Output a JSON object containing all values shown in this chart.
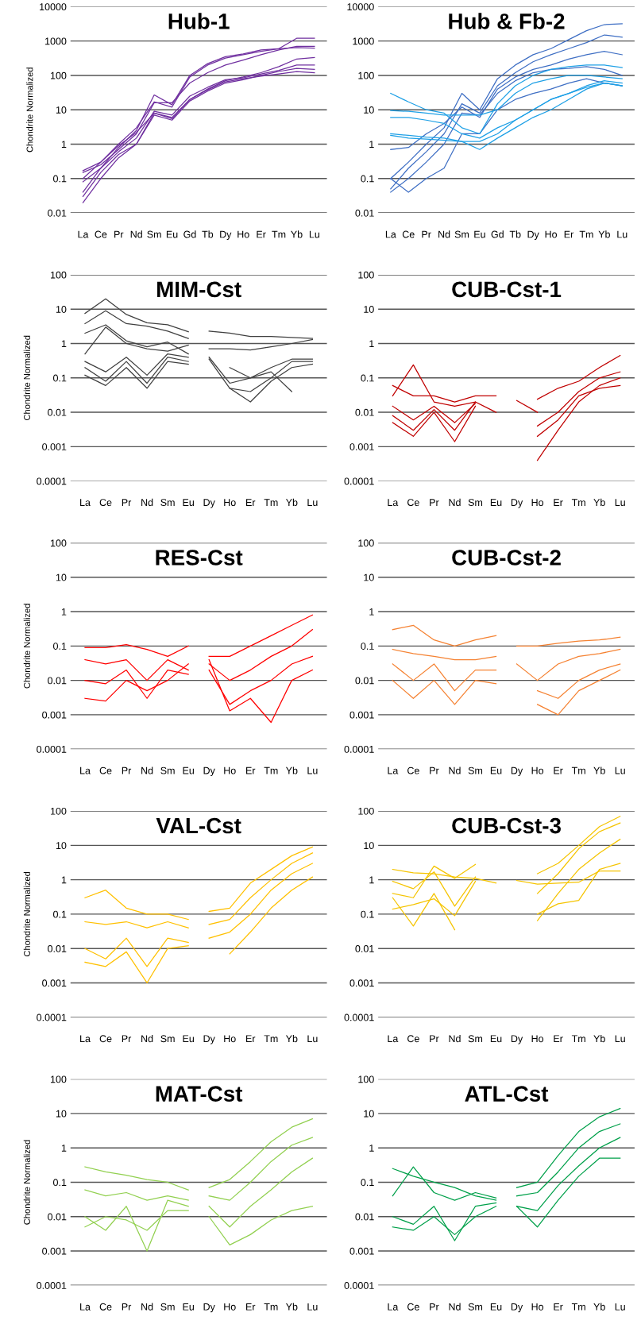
{
  "chart_data": [
    {
      "type": "line",
      "title": "Hub-1",
      "ylabel": "Chondrite Normalized",
      "log": true,
      "grid": "y",
      "ylim": [
        0.01,
        10000
      ],
      "yticks": [
        0.01,
        0.1,
        1,
        10,
        100,
        1000,
        10000
      ],
      "categories": [
        "La",
        "Ce",
        "Pr",
        "Nd",
        "Sm",
        "Eu",
        "Gd",
        "Tb",
        "Dy",
        "Ho",
        "Er",
        "Tm",
        "Yb",
        "Lu"
      ],
      "series": [
        {
          "color": "#7030a0",
          "values": [
            0.04,
            0.2,
            0.8,
            2.5,
            27,
            14,
            100,
            220,
            350,
            420,
            550,
            600,
            650,
            620
          ]
        },
        {
          "color": "#7030a0",
          "values": [
            0.1,
            0.3,
            1,
            3,
            17,
            12,
            90,
            200,
            320,
            400,
            500,
            600,
            1200,
            1200
          ]
        },
        {
          "color": "#7030a0",
          "values": [
            0.15,
            0.25,
            0.7,
            2,
            16,
            16,
            60,
            120,
            200,
            280,
            400,
            550,
            700,
            700
          ]
        },
        {
          "color": "#7030a0",
          "values": [
            0.03,
            0.15,
            0.5,
            1,
            8,
            6,
            20,
            40,
            70,
            90,
            120,
            180,
            300,
            330
          ]
        },
        {
          "color": "#7030a0",
          "values": [
            0.02,
            0.1,
            0.4,
            1,
            7,
            5,
            18,
            35,
            60,
            75,
            100,
            130,
            160,
            150
          ]
        },
        {
          "color": "#7030a0",
          "values": [
            0.08,
            0.2,
            0.6,
            1.5,
            9,
            7,
            25,
            45,
            75,
            85,
            110,
            140,
            200,
            200
          ]
        },
        {
          "color": "#7030a0",
          "values": [
            0.17,
            0.3,
            0.9,
            2.2,
            8,
            5.5,
            20,
            38,
            65,
            80,
            95,
            110,
            130,
            120
          ]
        }
      ]
    },
    {
      "type": "line",
      "title": "Hub & Fb-2",
      "log": true,
      "grid": "y",
      "ylim": [
        0.01,
        10000
      ],
      "yticks": [
        0.01,
        0.1,
        1,
        10,
        100,
        1000,
        10000
      ],
      "categories": [
        "La",
        "Ce",
        "Pr",
        "Nd",
        "Sm",
        "Eu",
        "Gd",
        "Tb",
        "Dy",
        "Ho",
        "Er",
        "Tm",
        "Yb",
        "Lu"
      ],
      "series": [
        {
          "color": "#3f6fc4",
          "values": [
            0.1,
            0.3,
            1,
            3,
            30,
            10,
            80,
            200,
            400,
            600,
            1100,
            2000,
            3000,
            3200
          ]
        },
        {
          "color": "#3f6fc4",
          "values": [
            0.05,
            0.2,
            0.6,
            2,
            15,
            8,
            50,
            120,
            250,
            400,
            600,
            900,
            1500,
            1300
          ]
        },
        {
          "color": "#3f6fc4",
          "values": [
            0.7,
            0.8,
            2,
            4,
            12,
            6,
            40,
            90,
            150,
            200,
            300,
            400,
            500,
            400
          ]
        },
        {
          "color": "#3f6fc4",
          "values": [
            0.04,
            0.1,
            0.3,
            1,
            8,
            7,
            30,
            70,
            120,
            150,
            160,
            180,
            150,
            100
          ]
        },
        {
          "color": "#3f6fc4",
          "values": [
            0.1,
            0.04,
            0.1,
            0.2,
            2,
            2,
            10,
            20,
            30,
            40,
            60,
            80,
            60,
            50
          ]
        },
        {
          "color": "#1ea0e6",
          "values": [
            30,
            17,
            10,
            8,
            3,
            2,
            15,
            50,
            100,
            150,
            180,
            200,
            200,
            170
          ]
        },
        {
          "color": "#1ea0e6",
          "values": [
            9.5,
            9,
            8,
            7,
            7,
            7,
            10,
            30,
            60,
            80,
            100,
            100,
            90,
            80
          ]
        },
        {
          "color": "#1ea0e6",
          "values": [
            6,
            6,
            5,
            4,
            2,
            1.5,
            3,
            5,
            10,
            20,
            30,
            45,
            60,
            50
          ]
        },
        {
          "color": "#1ea0e6",
          "values": [
            2,
            1.8,
            1.6,
            1.5,
            1.2,
            1.2,
            2,
            5,
            10,
            20,
            30,
            50,
            70,
            60
          ]
        },
        {
          "color": "#1ea0e6",
          "values": [
            1.8,
            1.5,
            1.4,
            1.3,
            1.2,
            0.7,
            1.5,
            3,
            6,
            10,
            20,
            40,
            60,
            50
          ]
        }
      ]
    },
    {
      "type": "line",
      "title": "MIM-Cst",
      "ylabel": "Chondrite Normalized",
      "log": true,
      "grid": "y",
      "ylim": [
        0.0001,
        100
      ],
      "yticks": [
        0.0001,
        0.001,
        0.01,
        0.1,
        1,
        10,
        100
      ],
      "categories": [
        "La",
        "Ce",
        "Pr",
        "Nd",
        "Sm",
        "Eu",
        "Dy",
        "Ho",
        "Er",
        "Tm",
        "Yb",
        "Lu"
      ],
      "series": [
        {
          "color": "#404040",
          "values": [
            7.5,
            20,
            7,
            4,
            3.5,
            2.2,
            null,
            null,
            null,
            null,
            null,
            null
          ]
        },
        {
          "color": "#404040",
          "values": [
            3.8,
            9,
            3.8,
            3.2,
            2.3,
            1.4,
            null,
            null,
            null,
            null,
            null,
            null
          ]
        },
        {
          "color": "#404040",
          "values": [
            2,
            3.5,
            1.2,
            0.8,
            1.1,
            0.5,
            null,
            null,
            null,
            null,
            null,
            null
          ]
        },
        {
          "color": "#404040",
          "values": [
            0.5,
            3,
            1,
            0.7,
            0.6,
            0.9,
            null,
            null,
            null,
            null,
            null,
            null
          ]
        },
        {
          "color": "#404040",
          "values": [
            0.3,
            0.15,
            0.4,
            0.12,
            0.5,
            0.4,
            null,
            null,
            null,
            null,
            null,
            null
          ]
        },
        {
          "color": "#404040",
          "values": [
            0.2,
            0.08,
            0.3,
            0.07,
            0.4,
            0.3,
            null,
            null,
            null,
            null,
            null,
            null
          ]
        },
        {
          "color": "#404040",
          "values": [
            0.12,
            0.06,
            0.2,
            0.05,
            0.3,
            0.25,
            null,
            null,
            null,
            null,
            null,
            null
          ]
        },
        {
          "color": "#404040",
          "values": [
            null,
            null,
            null,
            null,
            null,
            null,
            2.3,
            2,
            1.6,
            1.6,
            1.5,
            1.4
          ]
        },
        {
          "color": "#404040",
          "values": [
            null,
            null,
            null,
            null,
            null,
            null,
            0.7,
            0.7,
            0.65,
            0.8,
            1,
            1.3
          ]
        },
        {
          "color": "#404040",
          "values": [
            null,
            null,
            null,
            null,
            null,
            null,
            0.4,
            0.07,
            0.1,
            0.2,
            0.35,
            0.35
          ]
        },
        {
          "color": "#404040",
          "values": [
            null,
            null,
            null,
            null,
            null,
            null,
            0.35,
            0.05,
            0.04,
            0.1,
            0.3,
            0.3
          ]
        },
        {
          "color": "#404040",
          "values": [
            null,
            null,
            null,
            null,
            null,
            null,
            null,
            0.05,
            0.02,
            0.08,
            0.2,
            0.25
          ]
        },
        {
          "color": "#404040",
          "values": [
            null,
            null,
            null,
            null,
            null,
            null,
            null,
            0.2,
            0.1,
            0.15,
            0.04,
            null
          ]
        }
      ]
    },
    {
      "type": "line",
      "title": "CUB-Cst-1",
      "log": true,
      "grid": "y",
      "ylim": [
        0.0001,
        100
      ],
      "yticks": [
        0.0001,
        0.001,
        0.01,
        0.1,
        1,
        10,
        100
      ],
      "categories": [
        "La",
        "Ce",
        "Pr",
        "Nd",
        "Sm",
        "Eu",
        "Dy",
        "Ho",
        "Er",
        "Tm",
        "Yb",
        "Lu"
      ],
      "series": [
        {
          "color": "#c00000",
          "values": [
            0.06,
            0.03,
            0.03,
            0.02,
            0.03,
            0.03,
            null,
            null,
            null,
            null,
            null,
            null
          ]
        },
        {
          "color": "#c00000",
          "values": [
            0.03,
            0.24,
            0.02,
            0.015,
            0.02,
            0.01,
            null,
            null,
            null,
            null,
            null,
            null
          ]
        },
        {
          "color": "#c00000",
          "values": [
            0.015,
            0.006,
            0.015,
            0.005,
            0.018,
            null,
            null,
            null,
            null,
            null,
            null,
            null
          ]
        },
        {
          "color": "#c00000",
          "values": [
            0.008,
            0.003,
            0.012,
            0.003,
            0.02,
            null,
            null,
            null,
            null,
            null,
            null,
            null
          ]
        },
        {
          "color": "#c00000",
          "values": [
            0.005,
            0.002,
            0.01,
            0.0014,
            0.015,
            null,
            null,
            null,
            null,
            null,
            null,
            null
          ]
        },
        {
          "color": "#c00000",
          "values": [
            null,
            null,
            null,
            null,
            null,
            null,
            0.022,
            0.01,
            null,
            null,
            null,
            null
          ]
        },
        {
          "color": "#c00000",
          "values": [
            null,
            null,
            null,
            null,
            null,
            null,
            null,
            0.024,
            0.05,
            0.08,
            0.2,
            0.45
          ]
        },
        {
          "color": "#c00000",
          "values": [
            null,
            null,
            null,
            null,
            null,
            null,
            null,
            0.004,
            0.01,
            0.04,
            0.1,
            0.15
          ]
        },
        {
          "color": "#c00000",
          "values": [
            null,
            null,
            null,
            null,
            null,
            null,
            null,
            0.002,
            0.006,
            0.03,
            0.05,
            0.06
          ]
        },
        {
          "color": "#c00000",
          "values": [
            null,
            null,
            null,
            null,
            null,
            null,
            null,
            0.0004,
            0.003,
            0.02,
            0.06,
            0.1
          ]
        }
      ]
    },
    {
      "type": "line",
      "title": "RES-Cst",
      "ylabel": "Chondrite Normalized",
      "log": true,
      "grid": "y",
      "ylim": [
        0.0001,
        100
      ],
      "yticks": [
        0.0001,
        0.001,
        0.01,
        0.1,
        1,
        10,
        100
      ],
      "categories": [
        "La",
        "Ce",
        "Pr",
        "Nd",
        "Sm",
        "Eu",
        "Dy",
        "Ho",
        "Er",
        "Tm",
        "Yb",
        "Lu"
      ],
      "series": [
        {
          "color": "#ff0000",
          "values": [
            0.09,
            0.09,
            0.11,
            0.08,
            0.05,
            0.1,
            null,
            null,
            null,
            null,
            null,
            null
          ]
        },
        {
          "color": "#ff0000",
          "values": [
            0.04,
            0.03,
            0.04,
            0.01,
            0.04,
            0.02,
            null,
            null,
            null,
            null,
            null,
            null
          ]
        },
        {
          "color": "#ff0000",
          "values": [
            0.01,
            0.008,
            0.02,
            0.003,
            0.02,
            0.015,
            null,
            null,
            null,
            null,
            null,
            null
          ]
        },
        {
          "color": "#ff0000",
          "values": [
            0.003,
            0.0025,
            0.01,
            0.005,
            0.01,
            0.03,
            null,
            null,
            null,
            null,
            null,
            null
          ]
        },
        {
          "color": "#ff0000",
          "values": [
            null,
            null,
            null,
            null,
            null,
            null,
            0.05,
            0.05,
            0.1,
            0.2,
            0.4,
            0.8
          ]
        },
        {
          "color": "#ff0000",
          "values": [
            null,
            null,
            null,
            null,
            null,
            null,
            0.03,
            0.01,
            0.02,
            0.05,
            0.1,
            0.3
          ]
        },
        {
          "color": "#ff0000",
          "values": [
            null,
            null,
            null,
            null,
            null,
            null,
            0.02,
            0.002,
            0.005,
            0.01,
            0.03,
            0.05
          ]
        },
        {
          "color": "#ff0000",
          "values": [
            null,
            null,
            null,
            null,
            null,
            null,
            0.04,
            0.0013,
            0.003,
            0.0006,
            0.01,
            0.02
          ]
        }
      ]
    },
    {
      "type": "line",
      "title": "CUB-Cst-2",
      "log": true,
      "grid": "y",
      "ylim": [
        0.0001,
        100
      ],
      "yticks": [
        0.0001,
        0.001,
        0.01,
        0.1,
        1,
        10,
        100
      ],
      "categories": [
        "La",
        "Ce",
        "Pr",
        "Nd",
        "Sm",
        "Eu",
        "Dy",
        "Ho",
        "Er",
        "Tm",
        "Yb",
        "Lu"
      ],
      "series": [
        {
          "color": "#f58232",
          "values": [
            0.3,
            0.4,
            0.15,
            0.1,
            0.15,
            0.2,
            null,
            null,
            null,
            null,
            null,
            null
          ]
        },
        {
          "color": "#f58232",
          "values": [
            0.08,
            0.06,
            0.05,
            0.04,
            0.04,
            0.05,
            null,
            null,
            null,
            null,
            null,
            null
          ]
        },
        {
          "color": "#f58232",
          "values": [
            0.03,
            0.01,
            0.03,
            0.005,
            0.02,
            0.02,
            null,
            null,
            null,
            null,
            null,
            null
          ]
        },
        {
          "color": "#f58232",
          "values": [
            0.01,
            0.003,
            0.01,
            0.002,
            0.01,
            0.008,
            null,
            null,
            null,
            null,
            null,
            null
          ]
        },
        {
          "color": "#f58232",
          "values": [
            null,
            null,
            null,
            null,
            null,
            null,
            0.1,
            0.1,
            0.12,
            0.14,
            0.15,
            0.18
          ]
        },
        {
          "color": "#f58232",
          "values": [
            null,
            null,
            null,
            null,
            null,
            null,
            0.03,
            0.01,
            0.03,
            0.05,
            0.06,
            0.08
          ]
        },
        {
          "color": "#f58232",
          "values": [
            null,
            null,
            null,
            null,
            null,
            null,
            null,
            0.005,
            0.003,
            0.01,
            0.02,
            0.03
          ]
        },
        {
          "color": "#f58232",
          "values": [
            null,
            null,
            null,
            null,
            null,
            null,
            null,
            0.002,
            0.001,
            0.005,
            0.01,
            0.02
          ]
        }
      ]
    },
    {
      "type": "line",
      "title": "VAL-Cst",
      "ylabel": "Chondrite Normalized",
      "log": true,
      "grid": "y",
      "ylim": [
        0.0001,
        100
      ],
      "yticks": [
        0.0001,
        0.001,
        0.01,
        0.1,
        1,
        10,
        100
      ],
      "categories": [
        "La",
        "Ce",
        "Pr",
        "Nd",
        "Sm",
        "Eu",
        "Dy",
        "Ho",
        "Er",
        "Tm",
        "Yb",
        "Lu"
      ],
      "series": [
        {
          "color": "#ffc000",
          "values": [
            0.3,
            0.5,
            0.15,
            0.1,
            0.1,
            0.07,
            null,
            null,
            null,
            null,
            null,
            null
          ]
        },
        {
          "color": "#ffc000",
          "values": [
            0.06,
            0.05,
            0.06,
            0.04,
            0.06,
            0.04,
            null,
            null,
            null,
            null,
            null,
            null
          ]
        },
        {
          "color": "#ffc000",
          "values": [
            0.01,
            0.005,
            0.02,
            0.003,
            0.02,
            0.015,
            null,
            null,
            null,
            null,
            null,
            null
          ]
        },
        {
          "color": "#ffc000",
          "values": [
            0.004,
            0.003,
            0.008,
            0.001,
            0.01,
            0.012,
            null,
            null,
            null,
            null,
            null,
            null
          ]
        },
        {
          "color": "#ffc000",
          "values": [
            null,
            null,
            null,
            null,
            null,
            null,
            0.12,
            0.15,
            0.8,
            2,
            5,
            9
          ]
        },
        {
          "color": "#ffc000",
          "values": [
            null,
            null,
            null,
            null,
            null,
            null,
            0.05,
            0.07,
            0.3,
            1,
            3,
            6
          ]
        },
        {
          "color": "#ffc000",
          "values": [
            null,
            null,
            null,
            null,
            null,
            null,
            0.02,
            0.03,
            0.1,
            0.5,
            1.5,
            3
          ]
        },
        {
          "color": "#ffc000",
          "values": [
            null,
            null,
            null,
            null,
            null,
            null,
            null,
            0.007,
            0.03,
            0.15,
            0.5,
            1.2
          ]
        }
      ]
    },
    {
      "type": "line",
      "title": "CUB-Cst-3",
      "log": true,
      "grid": "y",
      "ylim": [
        0.0001,
        100
      ],
      "yticks": [
        0.0001,
        0.001,
        0.01,
        0.1,
        1,
        10,
        100
      ],
      "categories": [
        "La",
        "Ce",
        "Pr",
        "Nd",
        "Sm",
        "Eu",
        "Dy",
        "Ho",
        "Er",
        "Tm",
        "Yb",
        "Lu"
      ],
      "series": [
        {
          "color": "#f5c400",
          "values": [
            2,
            1.6,
            1.5,
            1.2,
            1.1,
            0.8,
            null,
            null,
            null,
            null,
            null,
            null
          ]
        },
        {
          "color": "#f5c400",
          "values": [
            0.4,
            0.3,
            2.5,
            1.1,
            2.8,
            null,
            null,
            null,
            null,
            null,
            null,
            null
          ]
        },
        {
          "color": "#f5c400",
          "values": [
            0.9,
            0.55,
            1.7,
            0.17,
            1.2,
            null,
            null,
            null,
            null,
            null,
            null,
            null
          ]
        },
        {
          "color": "#f5c400",
          "values": [
            0.14,
            0.19,
            0.28,
            0.09,
            0.9,
            null,
            null,
            null,
            null,
            null,
            null,
            null
          ]
        },
        {
          "color": "#f5c400",
          "values": [
            0.3,
            0.045,
            0.4,
            0.035,
            null,
            null,
            null,
            null,
            null,
            null,
            null,
            null
          ]
        },
        {
          "color": "#f5c400",
          "values": [
            null,
            null,
            null,
            null,
            null,
            null,
            0.95,
            0.75,
            0.8,
            0.85,
            1.8,
            1.8
          ]
        },
        {
          "color": "#f5c400",
          "values": [
            null,
            null,
            null,
            null,
            null,
            null,
            null,
            1.5,
            3,
            10,
            35,
            70
          ]
        },
        {
          "color": "#f5c400",
          "values": [
            null,
            null,
            null,
            null,
            null,
            null,
            null,
            0.4,
            1.5,
            8,
            25,
            45
          ]
        },
        {
          "color": "#f5c400",
          "values": [
            null,
            null,
            null,
            null,
            null,
            null,
            null,
            0.1,
            0.2,
            0.25,
            2,
            3
          ]
        },
        {
          "color": "#f5c400",
          "values": [
            null,
            null,
            null,
            null,
            null,
            null,
            null,
            0.065,
            0.4,
            2,
            6,
            15
          ]
        }
      ]
    },
    {
      "type": "line",
      "title": "MAT-Cst",
      "ylabel": "Chondrite Normalized",
      "log": true,
      "grid": "y",
      "ylim": [
        0.0001,
        100
      ],
      "yticks": [
        0.0001,
        0.001,
        0.01,
        0.1,
        1,
        10,
        100
      ],
      "categories": [
        "La",
        "Ce",
        "Pr",
        "Nd",
        "Sm",
        "Eu",
        "Dy",
        "Ho",
        "Er",
        "Tm",
        "Yb",
        "Lu"
      ],
      "series": [
        {
          "color": "#92d050",
          "values": [
            0.28,
            0.2,
            0.16,
            0.12,
            0.1,
            0.06,
            null,
            null,
            null,
            null,
            null,
            null
          ]
        },
        {
          "color": "#92d050",
          "values": [
            0.06,
            0.04,
            0.05,
            0.03,
            0.04,
            0.03,
            null,
            null,
            null,
            null,
            null,
            null
          ]
        },
        {
          "color": "#92d050",
          "values": [
            0.01,
            0.004,
            0.02,
            0.001,
            0.03,
            0.02,
            null,
            null,
            null,
            null,
            null,
            null
          ]
        },
        {
          "color": "#92d050",
          "values": [
            0.005,
            0.01,
            0.008,
            0.004,
            0.015,
            0.015,
            null,
            null,
            null,
            null,
            null,
            null
          ]
        },
        {
          "color": "#92d050",
          "values": [
            null,
            null,
            null,
            null,
            null,
            null,
            0.07,
            0.12,
            0.4,
            1.5,
            4,
            7
          ]
        },
        {
          "color": "#92d050",
          "values": [
            null,
            null,
            null,
            null,
            null,
            null,
            0.04,
            0.03,
            0.1,
            0.4,
            1.2,
            2
          ]
        },
        {
          "color": "#92d050",
          "values": [
            null,
            null,
            null,
            null,
            null,
            null,
            0.02,
            0.005,
            0.02,
            0.06,
            0.2,
            0.5
          ]
        },
        {
          "color": "#92d050",
          "values": [
            null,
            null,
            null,
            null,
            null,
            null,
            0.01,
            0.0015,
            0.003,
            0.008,
            0.015,
            0.02
          ]
        }
      ]
    },
    {
      "type": "line",
      "title": "ATL-Cst",
      "log": true,
      "grid": "y",
      "ylim": [
        0.0001,
        100
      ],
      "yticks": [
        0.0001,
        0.001,
        0.01,
        0.1,
        1,
        10,
        100
      ],
      "categories": [
        "La",
        "Ce",
        "Pr",
        "Nd",
        "Sm",
        "Eu",
        "Dy",
        "Ho",
        "Er",
        "Tm",
        "Yb",
        "Lu"
      ],
      "series": [
        {
          "color": "#00a04a",
          "values": [
            0.25,
            0.15,
            0.1,
            0.07,
            0.04,
            0.03,
            null,
            null,
            null,
            null,
            null,
            null
          ]
        },
        {
          "color": "#00a04a",
          "values": [
            0.04,
            0.28,
            0.05,
            0.03,
            0.05,
            0.035,
            null,
            null,
            null,
            null,
            null,
            null
          ]
        },
        {
          "color": "#00a04a",
          "values": [
            0.01,
            0.006,
            0.02,
            0.002,
            0.02,
            0.025,
            null,
            null,
            null,
            null,
            null,
            null
          ]
        },
        {
          "color": "#00a04a",
          "values": [
            0.005,
            0.004,
            0.01,
            0.003,
            0.01,
            0.02,
            null,
            null,
            null,
            null,
            null,
            null
          ]
        },
        {
          "color": "#00a04a",
          "values": [
            null,
            null,
            null,
            null,
            null,
            null,
            0.07,
            0.1,
            0.6,
            3,
            8,
            14
          ]
        },
        {
          "color": "#00a04a",
          "values": [
            null,
            null,
            null,
            null,
            null,
            null,
            0.04,
            0.05,
            0.2,
            1,
            3,
            5
          ]
        },
        {
          "color": "#00a04a",
          "values": [
            null,
            null,
            null,
            null,
            null,
            null,
            0.02,
            0.015,
            0.08,
            0.3,
            1,
            2
          ]
        },
        {
          "color": "#00a04a",
          "values": [
            null,
            null,
            null,
            null,
            null,
            null,
            0.02,
            0.005,
            0.03,
            0.15,
            0.5,
            0.5
          ]
        }
      ]
    }
  ]
}
